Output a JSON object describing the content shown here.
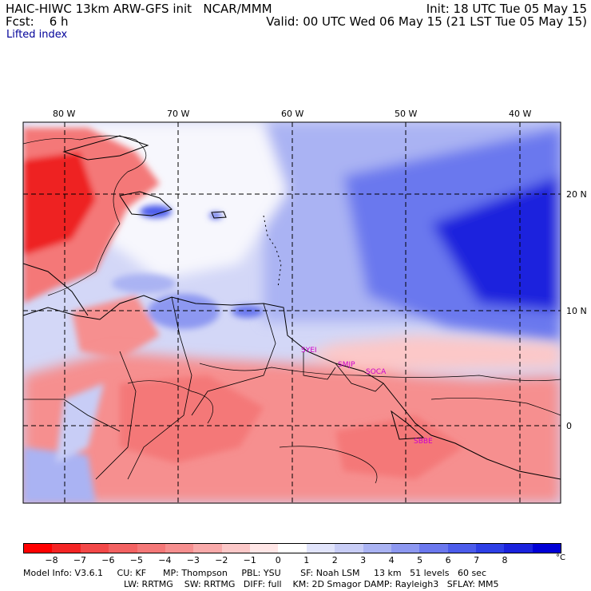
{
  "header": {
    "line1_left": "HAIC-HIWC 13km ARW-GFS init   NCAR/MMM",
    "line2_left": "Fcst:    6 h",
    "line1_right": "Init: 18 UTC Tue 05 May 15",
    "line2_right": "Valid: 00 UTC Wed 06 May 15 (21 LST Tue 05 May 15)",
    "field_name": "Lifted index"
  },
  "map": {
    "longitude_labels": [
      "80 W",
      "70 W",
      "60 W",
      "50 W",
      "40 W"
    ],
    "latitude_labels": [
      "20 N",
      "10 N",
      "0"
    ],
    "station_labels": [
      "SYEI",
      "SMJP",
      "SOCA",
      "SBBE"
    ],
    "colors": {
      "deep_red": "#ee2222",
      "red": "#f46666",
      "light_red": "#f9aaaa",
      "white": "#ffffff",
      "light_blue": "#c8cdf6",
      "blue": "#6b78ee",
      "deep_blue": "#1a22dd",
      "coastline": "#000000",
      "contour": "#000000"
    }
  },
  "colorbar": {
    "unit": "°C",
    "labels": [
      "−8",
      "−7",
      "−6",
      "−5",
      "−4",
      "−3",
      "−2",
      "−1",
      "0",
      "1",
      "2",
      "3",
      "4",
      "5",
      "6",
      "7",
      "8"
    ],
    "colors": [
      "#ff0000",
      "#f42424",
      "#f34848",
      "#f36262",
      "#f47878",
      "#f68f8f",
      "#f9aaaa",
      "#fcc8c8",
      "#ffe6e6",
      "#ffffff",
      "#e1e4fb",
      "#c8cdf6",
      "#aab3f3",
      "#8d98f1",
      "#6b78ee",
      "#4c5ceb",
      "#2e3fe6",
      "#1a22dd",
      "#0000d6"
    ]
  },
  "footer": {
    "line1": "Model Info: V3.6.1     CU: KF      MP: Thompson     PBL: YSU       SF: Noah LSM     13 km   51 levels   60 sec",
    "line2": "LW: RRTMG    SW: RRTMG   DIFF: full    KM: 2D Smagor DAMP: Rayleigh3   SFLAY: MM5"
  }
}
